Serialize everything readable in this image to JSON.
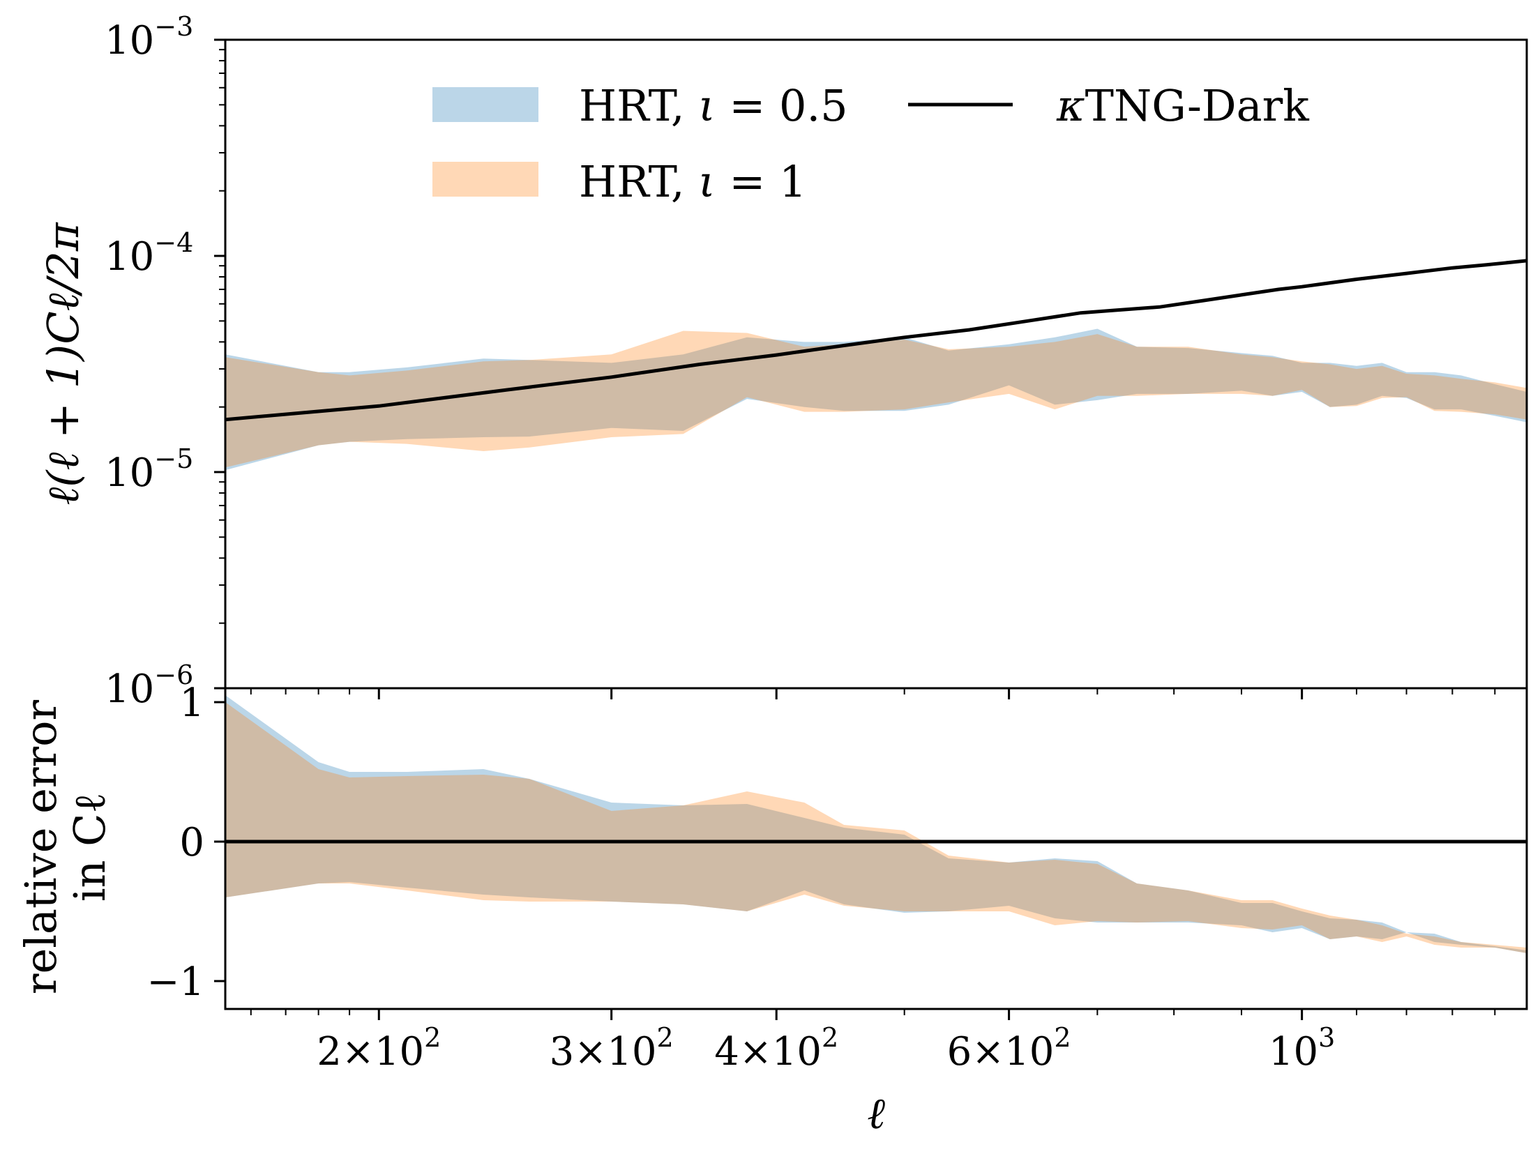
{
  "chart_data": [
    {
      "panel": "top",
      "type": "area",
      "xscale": "log",
      "yscale": "log",
      "xlim": [
        153,
        1480
      ],
      "ylim": [
        1e-06,
        0.001
      ],
      "ylabel": "ℓ(ℓ + 1)Cℓ/2π",
      "xticks": [
        {
          "value": 200,
          "mantissa": "2",
          "exp": "2"
        },
        {
          "value": 300,
          "mantissa": "3",
          "exp": "2"
        },
        {
          "value": 400,
          "mantissa": "4",
          "exp": "2"
        },
        {
          "value": 600,
          "mantissa": "6",
          "exp": "2"
        },
        {
          "value": 1000,
          "mantissa": "",
          "exp": "3"
        }
      ],
      "yticks": [
        {
          "value": 0.001,
          "exp": "−3"
        },
        {
          "value": 0.0001,
          "exp": "−4"
        },
        {
          "value": 1e-05,
          "exp": "−5"
        },
        {
          "value": 1e-06,
          "exp": "−6"
        }
      ],
      "legend": {
        "position": "top-center",
        "items": [
          {
            "prefix": "HRT, ",
            "var": "ι",
            "suffix": " = 0.5",
            "color": "#1f77b4",
            "kind": "band"
          },
          {
            "prefix": "",
            "var": "κ",
            "suffix": "TNG-Dark",
            "color": "#000000",
            "kind": "line"
          },
          {
            "prefix": "HRT, ",
            "var": "ι",
            "suffix": " = 1",
            "color": "#ff7f0e",
            "kind": "band"
          }
        ]
      },
      "series": [
        {
          "name": "HRT, ι = 0.5",
          "kind": "band",
          "color": "#1f77b4",
          "x": [
            153,
            180,
            190,
            210,
            240,
            260,
            300,
            340,
            380,
            420,
            450,
            500,
            540,
            600,
            650,
            700,
            750,
            820,
            900,
            950,
            1000,
            1050,
            1100,
            1150,
            1200,
            1260,
            1320,
            1400,
            1480
          ],
          "lower": [
            1.02e-05,
            1.33e-05,
            1.38e-05,
            1.42e-05,
            1.45e-05,
            1.46e-05,
            1.6e-05,
            1.55e-05,
            2.18e-05,
            2e-05,
            1.92e-05,
            1.92e-05,
            2.05e-05,
            2.52e-05,
            2.05e-05,
            2.15e-05,
            2.3e-05,
            2.3e-05,
            2.38e-05,
            2.25e-05,
            2.35e-05,
            2e-05,
            2.05e-05,
            2.25e-05,
            2.2e-05,
            1.95e-05,
            1.95e-05,
            1.82e-05,
            1.7e-05
          ],
          "upper": [
            3.5e-05,
            2.9e-05,
            2.9e-05,
            3.05e-05,
            3.35e-05,
            3.3e-05,
            3.2e-05,
            3.5e-05,
            4.2e-05,
            4e-05,
            4e-05,
            4.2e-05,
            3.65e-05,
            3.9e-05,
            4.2e-05,
            4.6e-05,
            3.8e-05,
            3.75e-05,
            3.55e-05,
            3.45e-05,
            3.2e-05,
            3.2e-05,
            3.1e-05,
            3.2e-05,
            2.9e-05,
            2.9e-05,
            2.8e-05,
            2.55e-05,
            2.35e-05
          ]
        },
        {
          "name": "HRT, ι = 1",
          "kind": "band",
          "color": "#ff7f0e",
          "x": [
            153,
            180,
            190,
            210,
            240,
            260,
            300,
            340,
            380,
            420,
            450,
            500,
            540,
            600,
            650,
            700,
            750,
            820,
            900,
            950,
            1000,
            1050,
            1100,
            1150,
            1200,
            1260,
            1320,
            1400,
            1480
          ],
          "lower": [
            1.05e-05,
            1.33e-05,
            1.38e-05,
            1.35e-05,
            1.25e-05,
            1.3e-05,
            1.45e-05,
            1.5e-05,
            2.22e-05,
            1.9e-05,
            1.9e-05,
            1.95e-05,
            2.1e-05,
            2.3e-05,
            1.95e-05,
            2.25e-05,
            2.25e-05,
            2.3e-05,
            2.3e-05,
            2.25e-05,
            2.4e-05,
            2e-05,
            2.02e-05,
            2.2e-05,
            2.22e-05,
            1.92e-05,
            1.9e-05,
            1.85e-05,
            1.75e-05
          ],
          "upper": [
            3.4e-05,
            2.9e-05,
            2.8e-05,
            2.95e-05,
            3.25e-05,
            3.3e-05,
            3.5e-05,
            4.5e-05,
            4.4e-05,
            3.8e-05,
            3.9e-05,
            4.1e-05,
            3.7e-05,
            3.8e-05,
            4e-05,
            4.35e-05,
            3.8e-05,
            3.8e-05,
            3.5e-05,
            3.4e-05,
            3.25e-05,
            3.15e-05,
            3e-05,
            3.1e-05,
            2.85e-05,
            2.8e-05,
            2.7e-05,
            2.6e-05,
            2.45e-05
          ]
        },
        {
          "name": "κTNG-Dark",
          "kind": "line",
          "color": "#000000",
          "x": [
            153,
            200,
            250,
            300,
            350,
            400,
            450,
            500,
            560,
            620,
            680,
            720,
            780,
            840,
            900,
            960,
            1000,
            1100,
            1200,
            1300,
            1380,
            1480
          ],
          "y": [
            1.75e-05,
            2.02e-05,
            2.4e-05,
            2.75e-05,
            3.15e-05,
            3.48e-05,
            3.85e-05,
            4.2e-05,
            4.55e-05,
            5e-05,
            5.45e-05,
            5.6e-05,
            5.8e-05,
            6.2e-05,
            6.6e-05,
            7e-05,
            7.2e-05,
            7.8e-05,
            8.3e-05,
            8.8e-05,
            9.1e-05,
            9.5e-05
          ]
        }
      ]
    },
    {
      "panel": "bottom",
      "type": "area",
      "xscale": "log",
      "yscale": "linear",
      "xlim": [
        153,
        1480
      ],
      "ylim": [
        -1.2,
        1.1
      ],
      "xlabel": "ℓ",
      "ylabel": [
        "relative error",
        "in Cℓ"
      ],
      "yticks": [
        {
          "value": 1,
          "label": "1"
        },
        {
          "value": 0,
          "label": "0"
        },
        {
          "value": -1,
          "label": "−1"
        }
      ],
      "xticks": [
        {
          "value": 200,
          "mantissa": "2",
          "exp": "2"
        },
        {
          "value": 300,
          "mantissa": "3",
          "exp": "2"
        },
        {
          "value": 400,
          "mantissa": "4",
          "exp": "2"
        },
        {
          "value": 600,
          "mantissa": "6",
          "exp": "2"
        },
        {
          "value": 1000,
          "mantissa": "",
          "exp": "3"
        }
      ],
      "reference_line": 0,
      "series": [
        {
          "name": "HRT, ι = 0.5",
          "kind": "band",
          "color": "#1f77b4",
          "x": [
            153,
            180,
            190,
            210,
            240,
            260,
            300,
            340,
            380,
            420,
            450,
            500,
            540,
            600,
            650,
            700,
            750,
            820,
            900,
            950,
            1000,
            1050,
            1100,
            1150,
            1200,
            1260,
            1320,
            1400,
            1480
          ],
          "lower": [
            -0.4,
            -0.3,
            -0.29,
            -0.33,
            -0.38,
            -0.4,
            -0.43,
            -0.45,
            -0.5,
            -0.35,
            -0.45,
            -0.51,
            -0.5,
            -0.46,
            -0.55,
            -0.58,
            -0.58,
            -0.58,
            -0.6,
            -0.65,
            -0.62,
            -0.7,
            -0.68,
            -0.7,
            -0.65,
            -0.72,
            -0.74,
            -0.76,
            -0.8
          ],
          "upper": [
            1.05,
            0.57,
            0.5,
            0.5,
            0.52,
            0.45,
            0.28,
            0.26,
            0.27,
            0.17,
            0.1,
            0.05,
            -0.12,
            -0.15,
            -0.12,
            -0.14,
            -0.3,
            -0.35,
            -0.44,
            -0.44,
            -0.5,
            -0.55,
            -0.56,
            -0.58,
            -0.65,
            -0.66,
            -0.72,
            -0.75,
            -0.78
          ]
        },
        {
          "name": "HRT, ι = 1",
          "kind": "band",
          "color": "#ff7f0e",
          "x": [
            153,
            180,
            190,
            210,
            240,
            260,
            300,
            340,
            380,
            420,
            450,
            500,
            540,
            600,
            650,
            700,
            750,
            820,
            900,
            950,
            1000,
            1050,
            1100,
            1150,
            1200,
            1260,
            1320,
            1400,
            1480
          ],
          "lower": [
            -0.4,
            -0.3,
            -0.3,
            -0.35,
            -0.42,
            -0.43,
            -0.43,
            -0.45,
            -0.5,
            -0.38,
            -0.46,
            -0.5,
            -0.5,
            -0.5,
            -0.6,
            -0.57,
            -0.58,
            -0.57,
            -0.62,
            -0.63,
            -0.6,
            -0.7,
            -0.68,
            -0.72,
            -0.68,
            -0.74,
            -0.76,
            -0.76,
            -0.8
          ],
          "upper": [
            1.0,
            0.52,
            0.46,
            0.47,
            0.48,
            0.45,
            0.22,
            0.26,
            0.36,
            0.28,
            0.12,
            0.08,
            -0.1,
            -0.15,
            -0.13,
            -0.16,
            -0.3,
            -0.35,
            -0.42,
            -0.42,
            -0.48,
            -0.53,
            -0.56,
            -0.6,
            -0.66,
            -0.68,
            -0.72,
            -0.74,
            -0.76
          ]
        }
      ]
    }
  ]
}
